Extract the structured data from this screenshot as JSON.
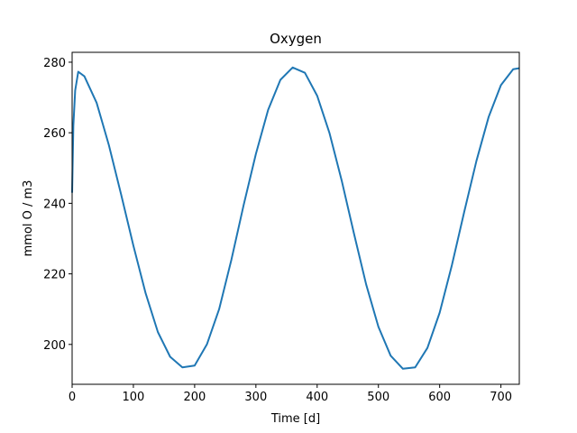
{
  "chart_data": {
    "type": "line",
    "title": "Oxygen",
    "x_label": "Time [d]",
    "y_label": "mmol O / m3",
    "x": [
      0,
      2,
      5,
      10,
      20,
      40,
      50,
      60,
      80,
      100,
      120,
      140,
      160,
      180,
      200,
      220,
      240,
      260,
      280,
      300,
      320,
      340,
      360,
      380,
      400,
      420,
      440,
      460,
      480,
      500,
      520,
      540,
      560,
      580,
      600,
      620,
      640,
      660,
      680,
      700,
      720,
      730
    ],
    "series": [
      {
        "name": "Oxygen",
        "color": "#1f77b4",
        "values": [
          243,
          262,
          272,
          277.3,
          276.0,
          268.5,
          262.5,
          256.5,
          242.5,
          228.0,
          214.5,
          203.5,
          196.5,
          193.5,
          194.0,
          200.0,
          210.0,
          224.0,
          239.5,
          254.0,
          266.5,
          275.0,
          278.5,
          277.0,
          270.5,
          260.0,
          246.5,
          231.5,
          217.0,
          205.0,
          196.8,
          193.1,
          193.5,
          199.0,
          209.0,
          222.5,
          237.5,
          252.0,
          264.5,
          273.5,
          278.0,
          278.3
        ]
      }
    ],
    "xlim": [
      0,
      730
    ],
    "ylim": [
      188.7,
      282.8
    ],
    "xticks": [
      0,
      100,
      200,
      300,
      400,
      500,
      600,
      700
    ],
    "yticks": [
      200,
      220,
      240,
      260,
      280
    ]
  }
}
